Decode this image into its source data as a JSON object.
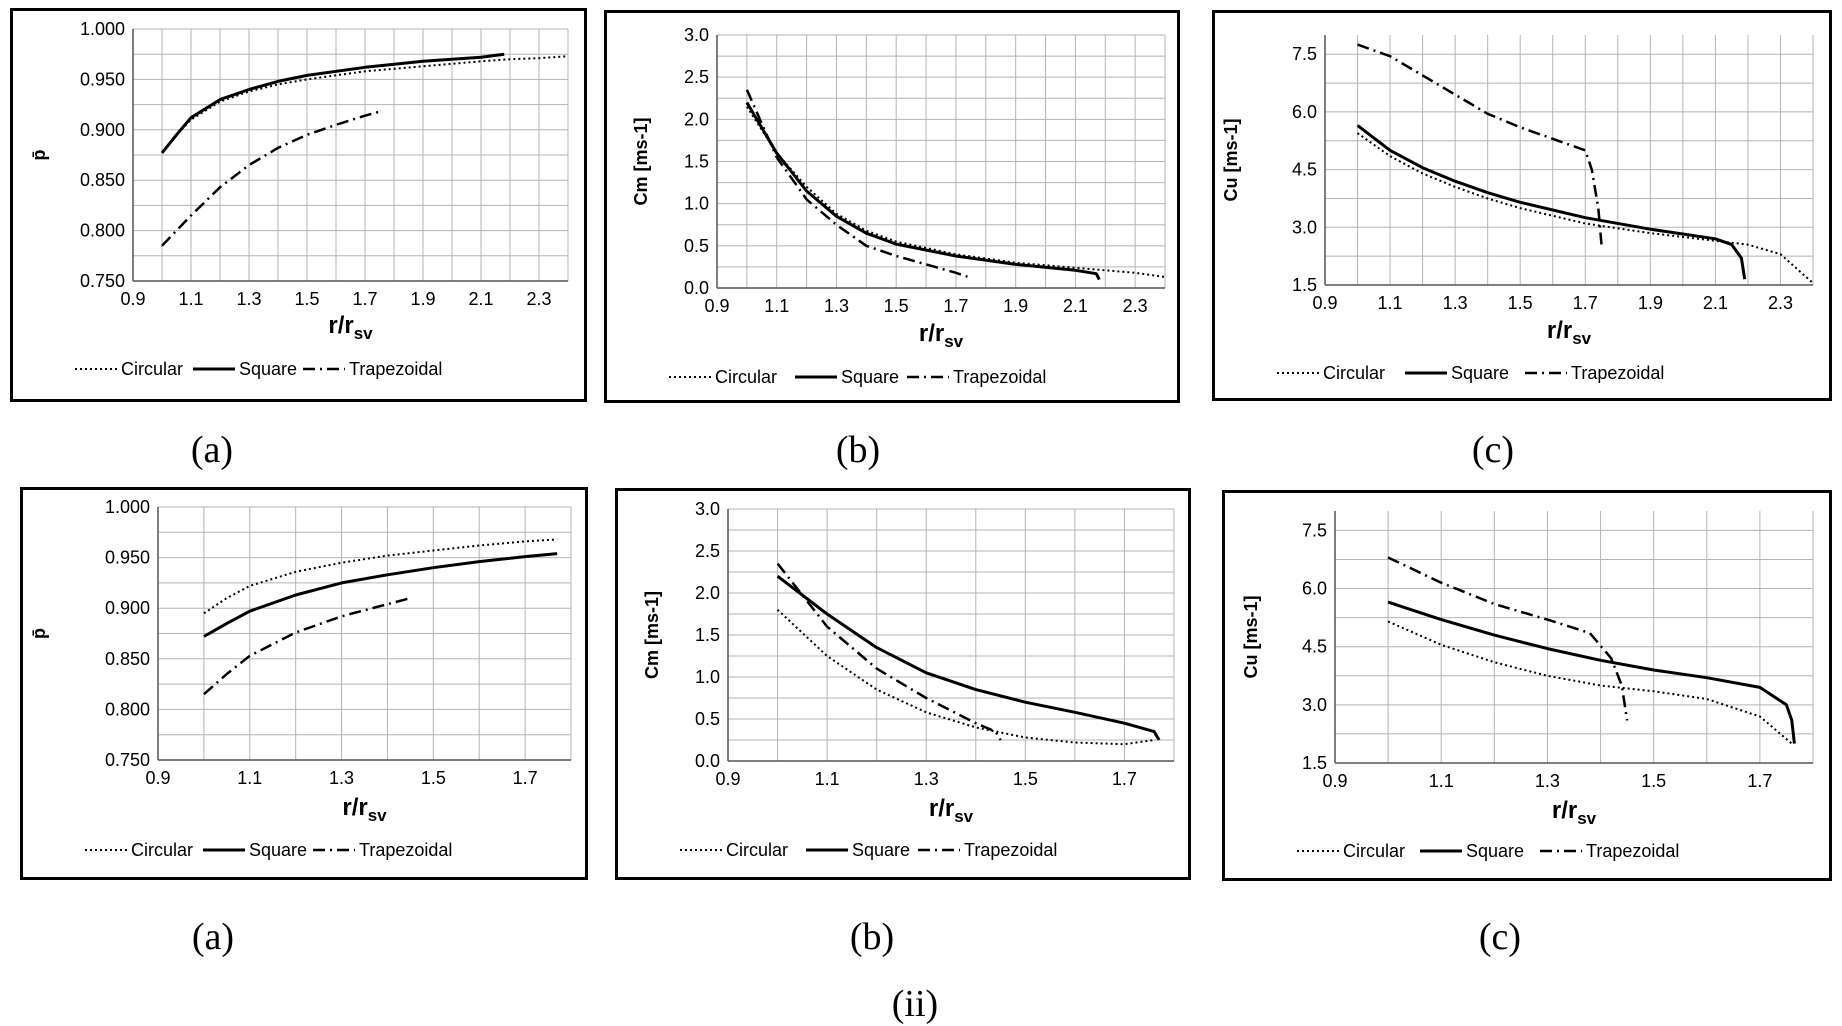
{
  "figure_label": "(ii)",
  "captions": [
    "(a)",
    "(b)",
    "(c)",
    "(a)",
    "(b)",
    "(c)"
  ],
  "legend": [
    "Circular",
    "Square",
    "Trapezoidal"
  ],
  "chart_data": [
    {
      "type": "line",
      "ylabel": "p̄",
      "xlabel": "r/r",
      "xlabel_sub": "sv",
      "xlim": [
        0.9,
        2.4
      ],
      "xticks": [
        "0.9",
        "1.1",
        "1.3",
        "1.5",
        "1.7",
        "1.9",
        "2.1",
        "2.3"
      ],
      "ylim": [
        0.75,
        1.0
      ],
      "yticks": [
        "0.750",
        "0.800",
        "0.850",
        "0.900",
        "0.950",
        "1.000"
      ],
      "series": [
        {
          "name": "Circular",
          "style": "dotted",
          "x": [
            1.0,
            1.05,
            1.1,
            1.2,
            1.3,
            1.4,
            1.5,
            1.7,
            1.9,
            2.1,
            2.2,
            2.3,
            2.4
          ],
          "y": [
            0.878,
            0.895,
            0.91,
            0.928,
            0.938,
            0.945,
            0.95,
            0.958,
            0.963,
            0.968,
            0.97,
            0.971,
            0.973
          ]
        },
        {
          "name": "Square",
          "style": "solid",
          "x": [
            1.0,
            1.05,
            1.1,
            1.2,
            1.3,
            1.4,
            1.5,
            1.7,
            1.9,
            2.1,
            2.18
          ],
          "y": [
            0.877,
            0.895,
            0.912,
            0.93,
            0.94,
            0.948,
            0.954,
            0.962,
            0.968,
            0.972,
            0.975
          ]
        },
        {
          "name": "Trapezoidal",
          "style": "dashdot",
          "x": [
            1.0,
            1.1,
            1.2,
            1.3,
            1.4,
            1.5,
            1.6,
            1.7,
            1.75
          ],
          "y": [
            0.785,
            0.815,
            0.843,
            0.865,
            0.882,
            0.895,
            0.905,
            0.914,
            0.918
          ]
        }
      ]
    },
    {
      "type": "line",
      "ylabel": "Cm [ms-1]",
      "xlabel": "r/r",
      "xlabel_sub": "sv",
      "xlim": [
        0.9,
        2.4
      ],
      "xticks": [
        "0.9",
        "1.1",
        "1.3",
        "1.5",
        "1.7",
        "1.9",
        "2.1",
        "2.3"
      ],
      "ylim": [
        0.0,
        3.0
      ],
      "yticks": [
        "0.0",
        "0.5",
        "1.0",
        "1.5",
        "2.0",
        "2.5",
        "3.0"
      ],
      "series": [
        {
          "name": "Circular",
          "style": "dotted",
          "x": [
            1.0,
            1.1,
            1.2,
            1.3,
            1.4,
            1.5,
            1.7,
            1.9,
            2.1,
            2.3,
            2.4
          ],
          "y": [
            2.15,
            1.6,
            1.2,
            0.88,
            0.68,
            0.55,
            0.4,
            0.3,
            0.24,
            0.18,
            0.13
          ]
        },
        {
          "name": "Square",
          "style": "solid",
          "x": [
            1.0,
            1.1,
            1.2,
            1.3,
            1.4,
            1.5,
            1.7,
            1.9,
            2.1,
            2.17,
            2.18
          ],
          "y": [
            2.2,
            1.6,
            1.15,
            0.85,
            0.65,
            0.52,
            0.38,
            0.28,
            0.21,
            0.17,
            0.1
          ]
        },
        {
          "name": "Trapezoidal",
          "style": "dashdot",
          "x": [
            1.0,
            1.1,
            1.2,
            1.3,
            1.4,
            1.5,
            1.6,
            1.7,
            1.75
          ],
          "y": [
            2.35,
            1.55,
            1.05,
            0.75,
            0.5,
            0.38,
            0.28,
            0.18,
            0.12
          ]
        }
      ]
    },
    {
      "type": "line",
      "ylabel": "Cu [ms-1]",
      "xlabel": "r/r",
      "xlabel_sub": "sv",
      "xlim": [
        0.9,
        2.4
      ],
      "xticks": [
        "0.9",
        "1.1",
        "1.3",
        "1.5",
        "1.7",
        "1.9",
        "2.1",
        "2.3"
      ],
      "ylim": [
        1.5,
        8.0
      ],
      "yticks": [
        "1.5",
        "3.0",
        "4.5",
        "6.0",
        "7.5"
      ],
      "series": [
        {
          "name": "Circular",
          "style": "dotted",
          "x": [
            1.0,
            1.1,
            1.2,
            1.3,
            1.4,
            1.5,
            1.7,
            1.9,
            2.1,
            2.2,
            2.3,
            2.4
          ],
          "y": [
            5.45,
            4.85,
            4.4,
            4.05,
            3.75,
            3.5,
            3.1,
            2.85,
            2.65,
            2.55,
            2.3,
            1.55
          ]
        },
        {
          "name": "Square",
          "style": "solid",
          "x": [
            1.0,
            1.1,
            1.2,
            1.3,
            1.4,
            1.5,
            1.7,
            1.9,
            2.1,
            2.15,
            2.18,
            2.19
          ],
          "y": [
            5.65,
            5.0,
            4.55,
            4.2,
            3.9,
            3.65,
            3.25,
            2.95,
            2.7,
            2.55,
            2.2,
            1.65
          ]
        },
        {
          "name": "Trapezoidal",
          "style": "dashdot",
          "x": [
            1.0,
            1.1,
            1.2,
            1.3,
            1.4,
            1.5,
            1.6,
            1.7,
            1.72,
            1.74,
            1.75
          ],
          "y": [
            7.75,
            7.45,
            6.95,
            6.45,
            5.95,
            5.6,
            5.3,
            5.0,
            4.5,
            3.5,
            2.55
          ]
        }
      ]
    },
    {
      "type": "line",
      "ylabel": "p̄",
      "xlabel": "r/r",
      "xlabel_sub": "sv",
      "xlim": [
        0.9,
        1.8
      ],
      "xticks": [
        "0.9",
        "1.1",
        "1.3",
        "1.5",
        "1.7"
      ],
      "ylim": [
        0.75,
        1.0
      ],
      "yticks": [
        "0.750",
        "0.800",
        "0.850",
        "0.900",
        "0.950",
        "1.000"
      ],
      "series": [
        {
          "name": "Circular",
          "style": "dotted",
          "x": [
            1.0,
            1.05,
            1.1,
            1.2,
            1.3,
            1.4,
            1.5,
            1.6,
            1.7,
            1.77
          ],
          "y": [
            0.895,
            0.91,
            0.922,
            0.936,
            0.945,
            0.952,
            0.957,
            0.962,
            0.966,
            0.968
          ]
        },
        {
          "name": "Square",
          "style": "solid",
          "x": [
            1.0,
            1.05,
            1.1,
            1.2,
            1.3,
            1.4,
            1.5,
            1.6,
            1.7,
            1.77
          ],
          "y": [
            0.872,
            0.885,
            0.897,
            0.913,
            0.925,
            0.933,
            0.94,
            0.946,
            0.951,
            0.954
          ]
        },
        {
          "name": "Trapezoidal",
          "style": "dashdot",
          "x": [
            1.0,
            1.05,
            1.1,
            1.2,
            1.3,
            1.4,
            1.45
          ],
          "y": [
            0.815,
            0.835,
            0.853,
            0.876,
            0.892,
            0.904,
            0.91
          ]
        }
      ]
    },
    {
      "type": "line",
      "ylabel": "Cm [ms-1]",
      "xlabel": "r/r",
      "xlabel_sub": "sv",
      "xlim": [
        0.9,
        1.8
      ],
      "xticks": [
        "0.9",
        "1.1",
        "1.3",
        "1.5",
        "1.7"
      ],
      "ylim": [
        0.0,
        3.0
      ],
      "yticks": [
        "0.0",
        "0.5",
        "1.0",
        "1.5",
        "2.0",
        "2.5",
        "3.0"
      ],
      "series": [
        {
          "name": "Circular",
          "style": "dotted",
          "x": [
            1.0,
            1.1,
            1.2,
            1.3,
            1.4,
            1.5,
            1.6,
            1.7,
            1.76
          ],
          "y": [
            1.8,
            1.25,
            0.85,
            0.58,
            0.4,
            0.28,
            0.22,
            0.2,
            0.25
          ]
        },
        {
          "name": "Square",
          "style": "solid",
          "x": [
            1.0,
            1.1,
            1.2,
            1.3,
            1.4,
            1.5,
            1.6,
            1.7,
            1.76,
            1.77
          ],
          "y": [
            2.2,
            1.75,
            1.35,
            1.05,
            0.85,
            0.7,
            0.58,
            0.45,
            0.35,
            0.25
          ]
        },
        {
          "name": "Trapezoidal",
          "style": "dashdot",
          "x": [
            1.0,
            1.1,
            1.2,
            1.3,
            1.4,
            1.44,
            1.45
          ],
          "y": [
            2.35,
            1.6,
            1.1,
            0.75,
            0.45,
            0.35,
            0.25
          ]
        }
      ]
    },
    {
      "type": "line",
      "ylabel": "Cu [ms-1]",
      "xlabel": "r/r",
      "xlabel_sub": "sv",
      "xlim": [
        0.9,
        1.8
      ],
      "xticks": [
        "0.9",
        "1.1",
        "1.3",
        "1.5",
        "1.7"
      ],
      "ylim": [
        1.5,
        8.0
      ],
      "yticks": [
        "1.5",
        "3.0",
        "4.5",
        "6.0",
        "7.5"
      ],
      "series": [
        {
          "name": "Circular",
          "style": "dotted",
          "x": [
            1.0,
            1.1,
            1.2,
            1.3,
            1.4,
            1.5,
            1.6,
            1.7,
            1.76
          ],
          "y": [
            5.15,
            4.55,
            4.1,
            3.75,
            3.5,
            3.35,
            3.15,
            2.7,
            2.0
          ]
        },
        {
          "name": "Square",
          "style": "solid",
          "x": [
            1.0,
            1.1,
            1.2,
            1.3,
            1.4,
            1.5,
            1.6,
            1.7,
            1.75,
            1.76,
            1.765
          ],
          "y": [
            5.65,
            5.2,
            4.8,
            4.45,
            4.15,
            3.9,
            3.7,
            3.45,
            3.0,
            2.6,
            2.0
          ]
        },
        {
          "name": "Trapezoidal",
          "style": "dashdot",
          "x": [
            1.0,
            1.1,
            1.2,
            1.3,
            1.38,
            1.42,
            1.44,
            1.45
          ],
          "y": [
            6.8,
            6.15,
            5.6,
            5.2,
            4.85,
            4.2,
            3.5,
            2.6
          ]
        }
      ]
    }
  ]
}
